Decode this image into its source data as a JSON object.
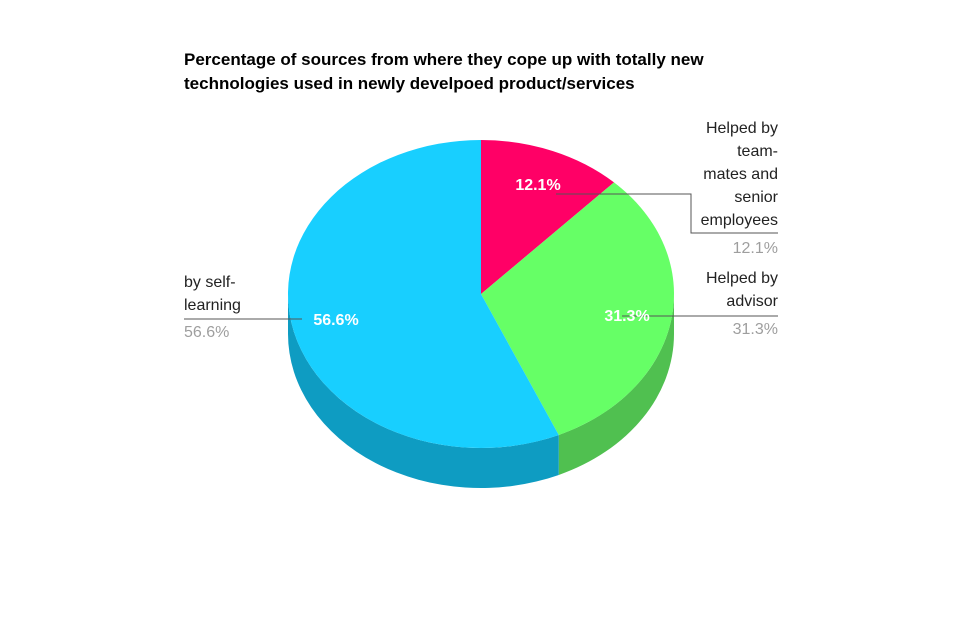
{
  "chart_data": {
    "type": "pie",
    "style": "3d",
    "title": "Percentage of sources from where they cope up with totally new technologies used in newly develpoed product/services",
    "slices": [
      {
        "label": "Helped by team-mates and senior employees",
        "value": 12.1,
        "value_label": "12.1%",
        "color": "#ff0066",
        "side_color": "#b3004a"
      },
      {
        "label": "Helped by advisor",
        "value": 31.3,
        "value_label": "31.3%",
        "color": "#66ff66",
        "side_color": "#50c050"
      },
      {
        "label": "by self-learning",
        "value": 56.6,
        "value_label": "56.6%",
        "color": "#18cfff",
        "side_color": "#0e9cc2"
      }
    ]
  },
  "legend": {
    "teammates": {
      "line1": "Helped by",
      "line2": "team-",
      "line3": "mates and",
      "line4": "senior",
      "line5": "employees",
      "pct": "12.1%"
    },
    "advisor": {
      "line1": "Helped by",
      "line2": "advisor",
      "pct": "31.3%"
    },
    "self": {
      "line1": "by self-",
      "line2": "learning",
      "pct": "56.6%"
    }
  }
}
